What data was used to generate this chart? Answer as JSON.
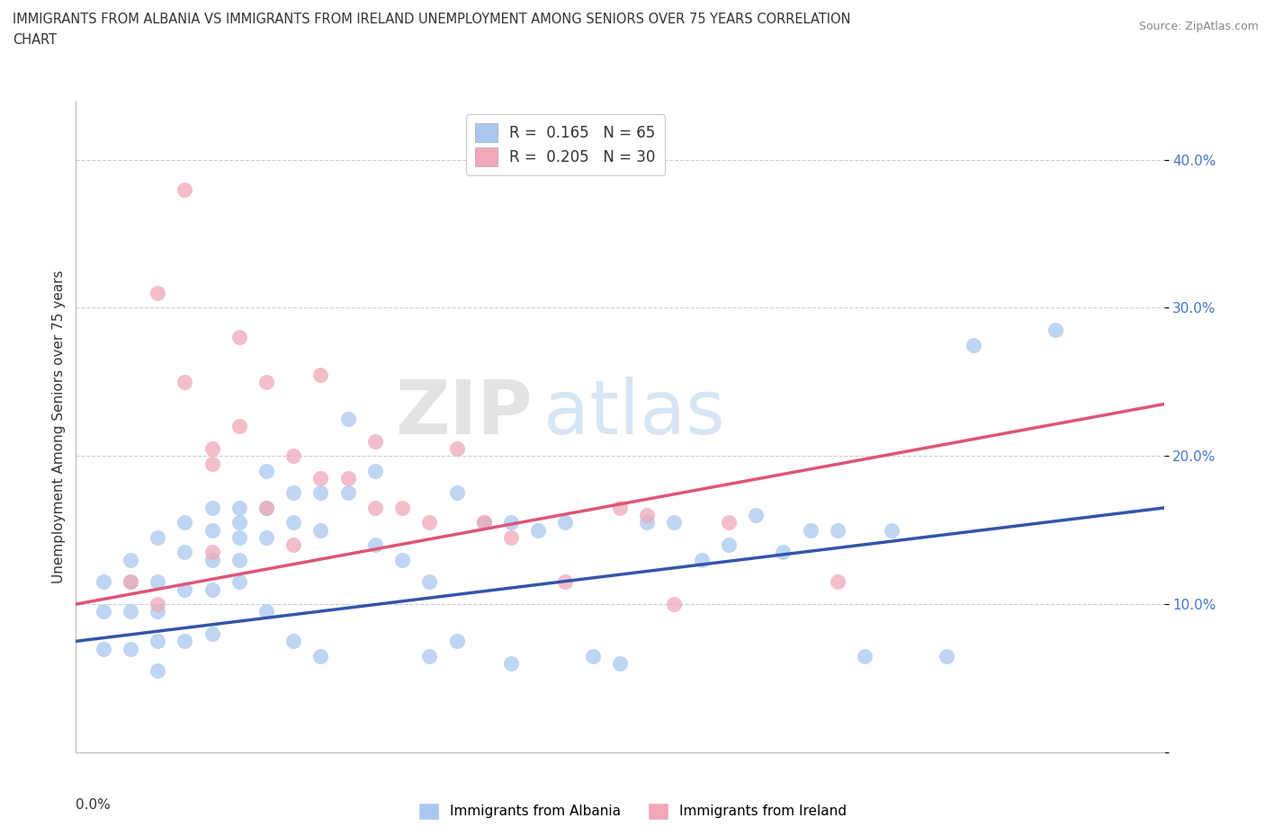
{
  "title_line1": "IMMIGRANTS FROM ALBANIA VS IMMIGRANTS FROM IRELAND UNEMPLOYMENT AMONG SENIORS OVER 75 YEARS CORRELATION",
  "title_line2": "CHART",
  "source": "Source: ZipAtlas.com",
  "ylabel": "Unemployment Among Seniors over 75 years",
  "xmin": 0.0,
  "xmax": 0.04,
  "ymin": 0.0,
  "ymax": 0.44,
  "albania_color": "#a8c8f0",
  "ireland_color": "#f0a8b8",
  "albania_line_color": "#3355aa",
  "ireland_line_color": "#dd5577",
  "legend_albania_label": "R =  0.165   N = 65",
  "legend_ireland_label": "R =  0.205   N = 30",
  "watermark_zip": "ZIP",
  "watermark_atlas": "atlas",
  "albania_trend_x": [
    0.0,
    0.04
  ],
  "albania_trend_y": [
    0.075,
    0.165
  ],
  "ireland_trend_x": [
    0.0,
    0.04
  ],
  "ireland_trend_y": [
    0.1,
    0.235
  ],
  "albania_x": [
    0.001,
    0.001,
    0.001,
    0.002,
    0.002,
    0.002,
    0.002,
    0.003,
    0.003,
    0.003,
    0.003,
    0.003,
    0.004,
    0.004,
    0.004,
    0.004,
    0.005,
    0.005,
    0.005,
    0.005,
    0.005,
    0.006,
    0.006,
    0.006,
    0.006,
    0.006,
    0.007,
    0.007,
    0.007,
    0.007,
    0.008,
    0.008,
    0.008,
    0.009,
    0.009,
    0.009,
    0.01,
    0.01,
    0.011,
    0.011,
    0.012,
    0.013,
    0.013,
    0.014,
    0.014,
    0.015,
    0.016,
    0.016,
    0.017,
    0.018,
    0.019,
    0.02,
    0.021,
    0.022,
    0.023,
    0.024,
    0.025,
    0.026,
    0.027,
    0.028,
    0.029,
    0.03,
    0.032,
    0.033,
    0.036
  ],
  "albania_y": [
    0.115,
    0.095,
    0.07,
    0.13,
    0.115,
    0.095,
    0.07,
    0.145,
    0.115,
    0.095,
    0.075,
    0.055,
    0.155,
    0.135,
    0.11,
    0.075,
    0.165,
    0.15,
    0.13,
    0.11,
    0.08,
    0.165,
    0.155,
    0.145,
    0.13,
    0.115,
    0.19,
    0.165,
    0.145,
    0.095,
    0.175,
    0.155,
    0.075,
    0.175,
    0.15,
    0.065,
    0.225,
    0.175,
    0.19,
    0.14,
    0.13,
    0.115,
    0.065,
    0.175,
    0.075,
    0.155,
    0.155,
    0.06,
    0.15,
    0.155,
    0.065,
    0.06,
    0.155,
    0.155,
    0.13,
    0.14,
    0.16,
    0.135,
    0.15,
    0.15,
    0.065,
    0.15,
    0.065,
    0.275,
    0.285
  ],
  "ireland_x": [
    0.002,
    0.003,
    0.003,
    0.004,
    0.004,
    0.005,
    0.005,
    0.005,
    0.006,
    0.006,
    0.007,
    0.007,
    0.008,
    0.008,
    0.009,
    0.009,
    0.01,
    0.011,
    0.011,
    0.012,
    0.013,
    0.014,
    0.015,
    0.016,
    0.018,
    0.02,
    0.021,
    0.022,
    0.024,
    0.028
  ],
  "ireland_y": [
    0.115,
    0.31,
    0.1,
    0.38,
    0.25,
    0.205,
    0.195,
    0.135,
    0.28,
    0.22,
    0.25,
    0.165,
    0.2,
    0.14,
    0.255,
    0.185,
    0.185,
    0.165,
    0.21,
    0.165,
    0.155,
    0.205,
    0.155,
    0.145,
    0.115,
    0.165,
    0.16,
    0.1,
    0.155,
    0.115
  ]
}
